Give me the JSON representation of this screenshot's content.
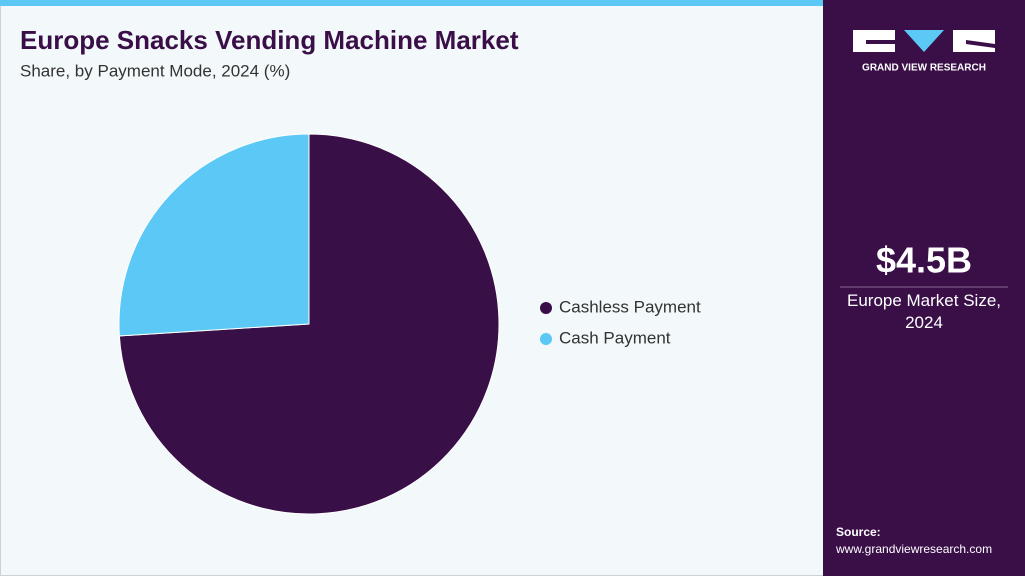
{
  "chart_data": {
    "type": "pie",
    "title": "Europe Snacks Vending Machine Market",
    "subtitle": "Share, by Payment Mode, 2024 (%)",
    "categories": [
      "Cashless Payment",
      "Cash Payment"
    ],
    "values": [
      74,
      26
    ],
    "colors": [
      "#380f47",
      "#5bc8f5"
    ]
  },
  "sidebar": {
    "brand": "GRAND VIEW RESEARCH",
    "market_size": "$4.5B",
    "market_label": "Europe Market Size, 2024",
    "source_label": "Source:",
    "source_url": "www.grandviewresearch.com"
  }
}
